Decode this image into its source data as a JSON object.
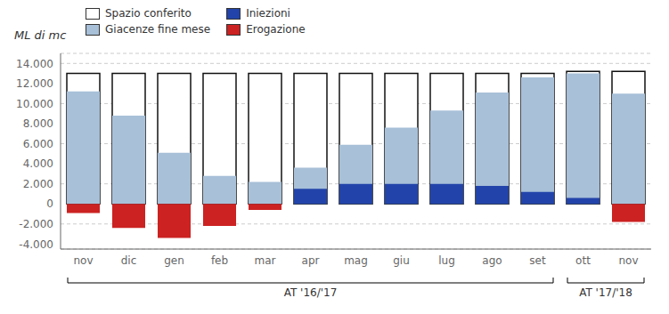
{
  "chart_data": {
    "type": "bar",
    "ylabel": "ML di mc",
    "categories": [
      "nov",
      "dic",
      "gen",
      "feb",
      "mar",
      "apr",
      "mag",
      "giu",
      "lug",
      "ago",
      "set",
      "ott",
      "nov"
    ],
    "series": [
      {
        "name": "Spazio conferito",
        "color": "#ffffff",
        "values": [
          13000,
          13000,
          13000,
          13000,
          13000,
          13000,
          13000,
          13000,
          13000,
          13000,
          13000,
          13200,
          13200
        ]
      },
      {
        "name": "Giacenze fine mese",
        "color": "#a8c0d8",
        "values": [
          11200,
          8800,
          5100,
          2800,
          2200,
          3600,
          5900,
          7600,
          9300,
          11100,
          12600,
          13000,
          11000
        ]
      },
      {
        "name": "Iniezioni",
        "color": "#2244aa",
        "values": [
          0,
          0,
          0,
          0,
          0,
          1500,
          2000,
          2000,
          2000,
          1800,
          1200,
          600,
          0
        ]
      },
      {
        "name": "Erogazione",
        "color": "#cc2222",
        "values": [
          -900,
          -2400,
          -3400,
          -2200,
          -600,
          0,
          0,
          0,
          0,
          0,
          0,
          0,
          -1800
        ]
      }
    ],
    "ylim": [
      -4500,
      15000
    ],
    "yticks": [
      {
        "value": -4000,
        "label": "-4.000"
      },
      {
        "value": -2000,
        "label": "-2.000"
      },
      0,
      {
        "value": 2000,
        "label": "2.000"
      },
      {
        "value": 4000,
        "label": "4.000"
      },
      {
        "value": 6000,
        "label": "6.000"
      },
      {
        "value": 8000,
        "label": "8.000"
      },
      {
        "value": 10000,
        "label": "10.000"
      },
      {
        "value": 12000,
        "label": "12.000"
      },
      {
        "value": 14000,
        "label": "14.000"
      }
    ],
    "grid": true,
    "legend": "upper left",
    "annotations": [
      {
        "text": "AT '16/'17",
        "from": 0,
        "to": 10
      },
      {
        "text": "AT '17/'18",
        "from": 11,
        "to": 12
      }
    ]
  }
}
